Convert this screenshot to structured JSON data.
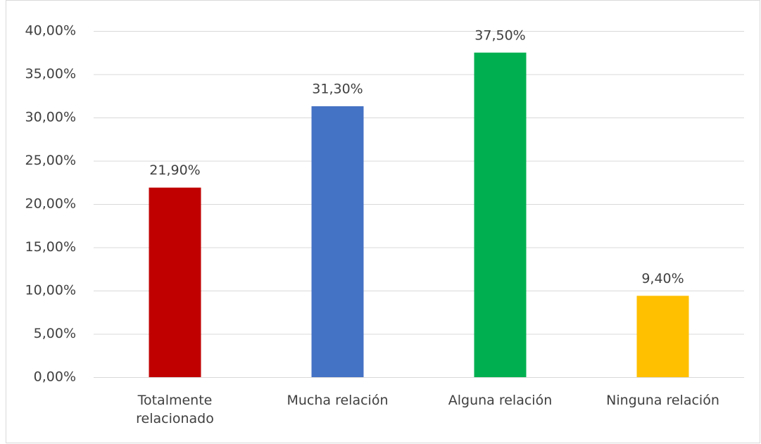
{
  "chart_data": {
    "type": "bar",
    "categories": [
      "Totalmente relacionado",
      "Mucha relación",
      "Alguna relación",
      "Ninguna relación"
    ],
    "values": [
      21.9,
      31.3,
      37.5,
      9.4
    ],
    "value_labels": [
      "21,90%",
      "31,30%",
      "37,50%",
      "9,40%"
    ],
    "colors": [
      "#c00000",
      "#4472c4",
      "#00b050",
      "#ffc000"
    ],
    "ylim": [
      0,
      40
    ],
    "yticks": [
      {
        "value": 0,
        "label": "0,00%"
      },
      {
        "value": 5,
        "label": "5,00%"
      },
      {
        "value": 10,
        "label": "10,00%"
      },
      {
        "value": 15,
        "label": "15,00%"
      },
      {
        "value": 20,
        "label": "20,00%"
      },
      {
        "value": 25,
        "label": "25,00%"
      },
      {
        "value": 30,
        "label": "30,00%"
      },
      {
        "value": 35,
        "label": "35,00%"
      },
      {
        "value": 40,
        "label": "40,00%"
      }
    ],
    "grid": true
  }
}
